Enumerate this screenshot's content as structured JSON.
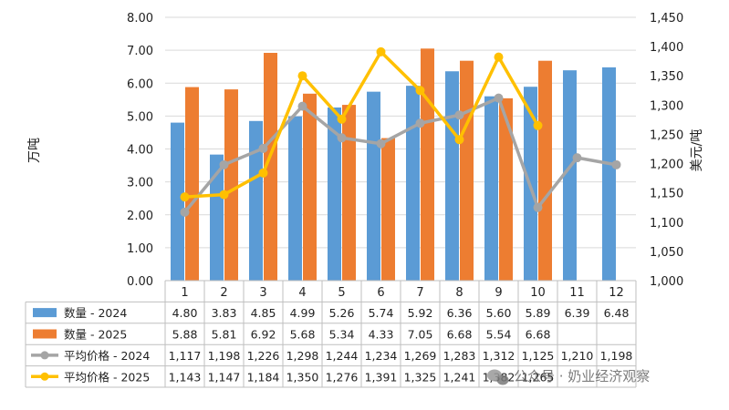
{
  "chart_data": {
    "type": "bar",
    "categories": [
      "1",
      "2",
      "3",
      "4",
      "5",
      "6",
      "7",
      "8",
      "9",
      "10",
      "11",
      "12"
    ],
    "y_left": {
      "label": "万吨",
      "ylim": [
        0,
        8
      ],
      "ticks": [
        "0.00",
        "1.00",
        "2.00",
        "3.00",
        "4.00",
        "5.00",
        "6.00",
        "7.00",
        "8.00"
      ]
    },
    "y_right": {
      "label": "美元/吨",
      "ylim": [
        1000,
        1450
      ],
      "ticks": [
        "1,000",
        "1,050",
        "1,100",
        "1,150",
        "1,200",
        "1,250",
        "1,300",
        "1,350",
        "1,400",
        "1,450"
      ]
    },
    "grid": true,
    "legend": "data-table-left",
    "series": [
      {
        "name": "数量 - 2024",
        "type": "bar",
        "axis": "left",
        "color": "#5b9bd5",
        "values": [
          4.8,
          3.83,
          4.85,
          4.99,
          5.26,
          5.74,
          5.92,
          6.36,
          5.6,
          5.89,
          6.39,
          6.48
        ],
        "labels": [
          "4.80",
          "3.83",
          "4.85",
          "4.99",
          "5.26",
          "5.74",
          "5.92",
          "6.36",
          "5.60",
          "5.89",
          "6.39",
          "6.48"
        ]
      },
      {
        "name": "数量 - 2025",
        "type": "bar",
        "axis": "left",
        "color": "#ed7d31",
        "values": [
          5.88,
          5.81,
          6.92,
          5.68,
          5.34,
          4.33,
          7.05,
          6.68,
          5.54,
          6.68,
          null,
          null
        ],
        "labels": [
          "5.88",
          "5.81",
          "6.92",
          "5.68",
          "5.34",
          "4.33",
          "7.05",
          "6.68",
          "5.54",
          "6.68",
          "",
          ""
        ]
      },
      {
        "name": "平均价格 - 2024",
        "type": "line",
        "axis": "right",
        "color": "#a5a5a5",
        "values": [
          1117,
          1198,
          1226,
          1298,
          1244,
          1234,
          1269,
          1283,
          1312,
          1125,
          1210,
          1198
        ],
        "labels": [
          "1,117",
          "1,198",
          "1,226",
          "1,298",
          "1,244",
          "1,234",
          "1,269",
          "1,283",
          "1,312",
          "1,125",
          "1,210",
          "1,198"
        ]
      },
      {
        "name": "平均价格 - 2025",
        "type": "line",
        "axis": "right",
        "color": "#ffc000",
        "values": [
          1143,
          1147,
          1184,
          1350,
          1276,
          1391,
          1325,
          1241,
          1382,
          1265,
          null,
          null
        ],
        "labels": [
          "1,143",
          "1,147",
          "1,184",
          "1,350",
          "1,276",
          "1,391",
          "1,325",
          "1,241",
          "1,382",
          "1,265",
          "",
          ""
        ]
      }
    ]
  },
  "watermark": "公众号 · 奶业经济观察",
  "icons": {
    "watermark": "wechat-icon"
  }
}
